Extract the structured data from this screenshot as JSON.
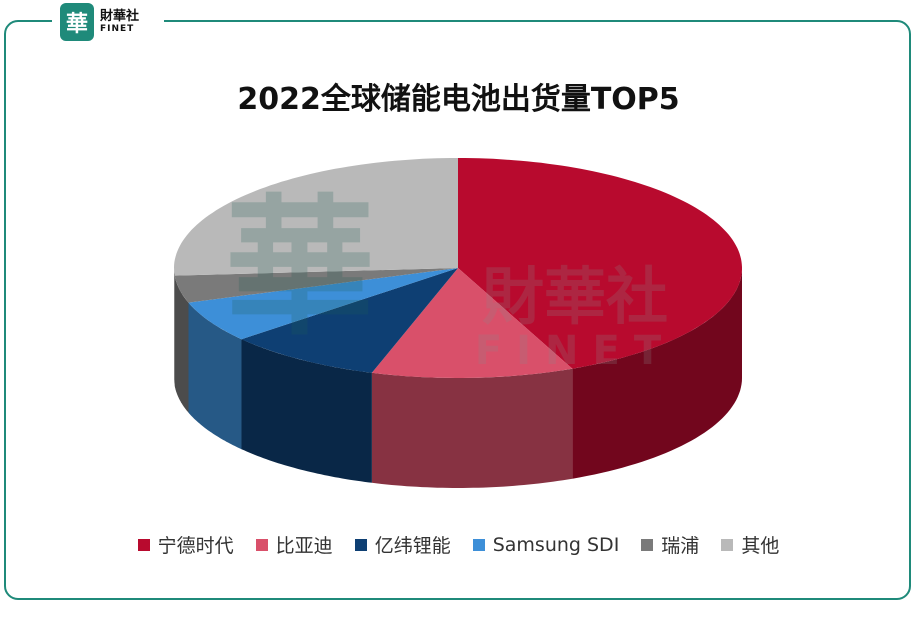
{
  "brand": {
    "badge_glyph": "華",
    "name_cn": "財華社",
    "name_en": "FINET"
  },
  "watermark": {
    "text_cn": "財華社",
    "text_en": "FINET",
    "glyph": "華"
  },
  "chart_data": {
    "type": "pie",
    "title": "2022全球储能电池出货量TOP5",
    "slices": [
      {
        "label": "宁德时代",
        "value": 43.4,
        "color": "#b80a2e"
      },
      {
        "label": "比亚迪",
        "value": 11.5,
        "color": "#d9506a"
      },
      {
        "label": "亿纬锂能",
        "value": 8.9,
        "color": "#0e3f73"
      },
      {
        "label": "Samsung SDI",
        "value": 6.1,
        "color": "#3d8fd8"
      },
      {
        "label": "瑞浦",
        "value": 4.0,
        "color": "#7a7a7a"
      },
      {
        "label": "其他",
        "value": 26.1,
        "color": "#b9b9b9"
      }
    ],
    "legend_position": "bottom",
    "style": "3d"
  }
}
